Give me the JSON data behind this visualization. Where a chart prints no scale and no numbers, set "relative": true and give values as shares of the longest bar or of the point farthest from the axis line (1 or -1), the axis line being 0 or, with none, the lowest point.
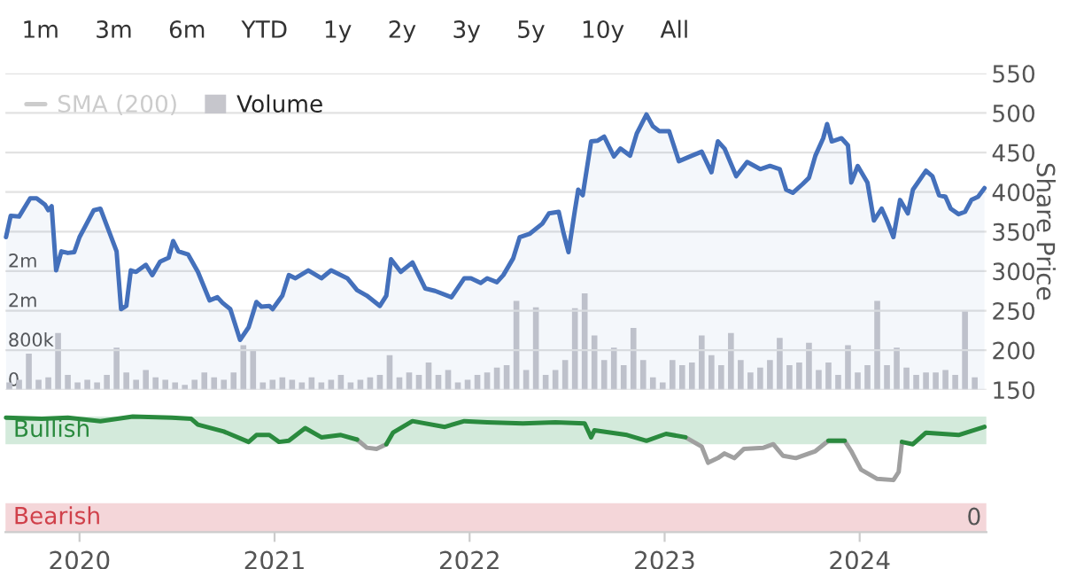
{
  "chart_data": [
    {
      "type": "area",
      "annotations": [
        "1m",
        "3m",
        "6m",
        "YTD",
        "1y",
        "2y",
        "3y",
        "5y",
        "10y",
        "All"
      ],
      "ylabel": "Share Price",
      "xlim": [
        2019.62,
        2024.65
      ],
      "ylim": [
        150,
        550
      ],
      "yticks": [
        150,
        200,
        250,
        300,
        350,
        400,
        450,
        500,
        550
      ],
      "y2lim": [
        0,
        6400000
      ],
      "y2ticks": [
        0,
        {
          "value": 800000,
          "label": "800k"
        },
        {
          "value": 1600000,
          "label": "2m"
        },
        {
          "value": 2400000,
          "label": "2m"
        }
      ],
      "grid": "y",
      "legend": "top left",
      "tick_labels": "y",
      "series": [
        {
          "type": "line",
          "name": "SMA (200)",
          "color": "#cccccc"
        },
        {
          "type": "bar",
          "name": "Volume",
          "color": "#c6c6cc",
          "axis": "y2",
          "x": [
            2019.64,
            2019.69,
            2019.74,
            2019.79,
            2019.84,
            2019.89,
            2019.94,
            2019.99,
            2020.04,
            2020.09,
            2020.14,
            2020.19,
            2020.24,
            2020.29,
            2020.34,
            2020.39,
            2020.44,
            2020.49,
            2020.54,
            2020.59,
            2020.64,
            2020.69,
            2020.74,
            2020.79,
            2020.84,
            2020.89,
            2020.94,
            2020.99,
            2021.04,
            2021.09,
            2021.14,
            2021.19,
            2021.24,
            2021.29,
            2021.34,
            2021.39,
            2021.44,
            2021.49,
            2021.54,
            2021.59,
            2021.64,
            2021.69,
            2021.74,
            2021.79,
            2021.84,
            2021.89,
            2021.94,
            2021.99,
            2022.04,
            2022.09,
            2022.14,
            2022.19,
            2022.24,
            2022.29,
            2022.34,
            2022.39,
            2022.44,
            2022.49,
            2022.54,
            2022.59,
            2022.64,
            2022.69,
            2022.74,
            2022.79,
            2022.84,
            2022.89,
            2022.94,
            2022.99,
            2023.04,
            2023.09,
            2023.14,
            2023.19,
            2023.24,
            2023.29,
            2023.34,
            2023.39,
            2023.44,
            2023.49,
            2023.54,
            2023.59,
            2023.64,
            2023.69,
            2023.74,
            2023.79,
            2023.84,
            2023.89,
            2023.94,
            2023.99,
            2024.04,
            2024.09,
            2024.14,
            2024.19,
            2024.24,
            2024.29,
            2024.34,
            2024.39,
            2024.44,
            2024.49,
            2024.54,
            2024.59
          ],
          "values": [
            150000,
            200000,
            730000,
            200000,
            250000,
            1150000,
            300000,
            150000,
            200000,
            150000,
            300000,
            850000,
            350000,
            200000,
            400000,
            250000,
            200000,
            150000,
            100000,
            200000,
            350000,
            250000,
            200000,
            350000,
            900000,
            800000,
            150000,
            200000,
            250000,
            200000,
            150000,
            250000,
            150000,
            200000,
            300000,
            150000,
            200000,
            250000,
            300000,
            700000,
            250000,
            350000,
            300000,
            550000,
            300000,
            400000,
            150000,
            200000,
            300000,
            350000,
            450000,
            500000,
            1800000,
            400000,
            1670000,
            300000,
            400000,
            600000,
            1650000,
            1950000,
            1100000,
            600000,
            850000,
            500000,
            1250000,
            600000,
            250000,
            150000,
            600000,
            500000,
            550000,
            1100000,
            700000,
            500000,
            1150000,
            600000,
            350000,
            450000,
            600000,
            1050000,
            500000,
            550000,
            950000,
            400000,
            550000,
            300000,
            900000,
            350000,
            500000,
            1800000,
            500000,
            850000,
            450000,
            300000,
            350000,
            350000,
            400000,
            300000,
            1600000,
            250000
          ]
        },
        {
          "type": "area",
          "color": "#4470bb",
          "x": [
            2019.623,
            2019.647,
            2019.69,
            2019.747,
            2019.78,
            2019.823,
            2019.84,
            2019.857,
            2019.88,
            2019.907,
            2019.94,
            2019.973,
            2020.0,
            2020.073,
            2020.107,
            2020.147,
            2020.19,
            2020.213,
            2020.24,
            2020.263,
            2020.29,
            2020.34,
            2020.373,
            2020.413,
            2020.457,
            2020.48,
            2020.507,
            2020.557,
            2020.607,
            2020.667,
            2020.707,
            2020.733,
            2020.773,
            2020.823,
            2020.867,
            2020.907,
            2020.933,
            2020.973,
            2020.99,
            2021.04,
            2021.073,
            2021.107,
            2021.173,
            2021.24,
            2021.29,
            2021.373,
            2021.423,
            2021.473,
            2021.54,
            2021.573,
            2021.597,
            2021.647,
            2021.707,
            2021.773,
            2021.823,
            2021.907,
            2021.973,
            2022.007,
            2022.057,
            2022.09,
            2022.14,
            2022.173,
            2022.223,
            2022.257,
            2022.307,
            2022.373,
            2022.407,
            2022.457,
            2022.48,
            2022.507,
            2022.54,
            2022.557,
            2022.58,
            2022.623,
            2022.657,
            2022.69,
            2022.74,
            2022.773,
            2022.823,
            2022.857,
            2022.907,
            2022.94,
            2022.973,
            2023.023,
            2023.073,
            2023.14,
            2023.19,
            2023.24,
            2023.273,
            2023.307,
            2023.367,
            2023.423,
            2023.49,
            2023.54,
            2023.59,
            2023.623,
            2023.657,
            2023.707,
            2023.74,
            2023.773,
            2023.813,
            2023.833,
            2023.857,
            2023.907,
            2023.94,
            2023.957,
            2023.99,
            2024.04,
            2024.073,
            2024.113,
            2024.14,
            2024.173,
            2024.207,
            2024.247,
            2024.273,
            2024.34,
            2024.373,
            2024.407,
            2024.44,
            2024.467,
            2024.507,
            2024.54,
            2024.573,
            2024.607,
            2024.64
          ],
          "values": [
            343,
            370,
            369,
            392,
            392,
            384,
            377,
            382,
            301,
            325,
            323,
            324,
            343,
            377,
            379,
            353,
            325,
            252,
            256,
            301,
            299,
            308,
            295,
            312,
            317,
            338,
            325,
            321,
            299,
            263,
            267,
            260,
            252,
            213,
            229,
            261,
            255,
            256,
            252,
            269,
            295,
            291,
            301,
            291,
            301,
            291,
            276,
            269,
            256,
            269,
            315,
            299,
            311,
            278,
            275,
            267,
            291,
            291,
            285,
            291,
            286,
            295,
            316,
            343,
            347,
            360,
            373,
            375,
            350,
            324,
            377,
            403,
            396,
            464,
            465,
            470,
            445,
            455,
            446,
            474,
            498,
            483,
            477,
            477,
            439,
            446,
            451,
            425,
            464,
            455,
            420,
            438,
            429,
            433,
            429,
            403,
            399,
            410,
            418,
            446,
            468,
            486,
            464,
            468,
            459,
            412,
            433,
            412,
            364,
            379,
            364,
            343,
            390,
            373,
            403,
            427,
            420,
            396,
            394,
            379,
            372,
            375,
            390,
            394,
            405
          ]
        }
      ]
    },
    {
      "type": "line",
      "relative": true,
      "xlim": [
        2019.62,
        2024.65
      ],
      "xticks": [
        2020,
        2021,
        2022,
        2023,
        2024
      ],
      "tick_labels": "x",
      "annotations": [
        "0"
      ],
      "bands": [
        {
          "axis": "y",
          "from": 0.76,
          "to": 1,
          "label": "Bullish",
          "color": "#d3eadb"
        },
        {
          "axis": "y",
          "from": 0,
          "to": 0.25,
          "label": "Bearish",
          "color": "#f4d6d9"
        }
      ],
      "x": [
        2019.623,
        2019.807,
        2019.94,
        2020.107,
        2020.273,
        2020.473,
        2020.573,
        2020.607,
        2020.74,
        2020.867,
        2020.907,
        2020.973,
        2021.023,
        2021.073,
        2021.157,
        2021.24,
        2021.34,
        2021.423,
        2021.473,
        2021.523,
        2021.573,
        2021.607,
        2021.707,
        2021.873,
        2021.973,
        2022.09,
        2022.273,
        2022.44,
        2022.59,
        2022.623,
        2022.64,
        2022.807,
        2022.907,
        2023.007,
        2023.107,
        2023.19,
        2023.223,
        2023.273,
        2023.307,
        2023.357,
        2023.407,
        2023.507,
        2023.557,
        2023.607,
        2023.673,
        2023.773,
        2023.84,
        2023.923,
        2023.957,
        2024.007,
        2024.09,
        2024.173,
        2024.2,
        2024.217,
        2024.273,
        2024.34,
        2024.507,
        2024.64
      ],
      "series": [
        {
          "color": "#a0a0a0",
          "values": [
            null,
            null,
            null,
            null,
            null,
            null,
            null,
            null,
            null,
            null,
            null,
            null,
            null,
            null,
            null,
            null,
            null,
            0.8,
            0.73,
            0.72,
            0.76,
            null,
            null,
            null,
            null,
            null,
            null,
            null,
            null,
            null,
            null,
            null,
            null,
            null,
            0.82,
            0.74,
            0.6,
            0.64,
            0.68,
            0.64,
            0.72,
            0.73,
            0.76,
            0.66,
            0.64,
            0.7,
            0.79,
            0.79,
            0.7,
            0.54,
            0.46,
            0.45,
            0.52,
            0.78,
            null,
            null,
            null,
            null
          ]
        },
        {
          "color": "#2a8a3e",
          "values": [
            0.99,
            0.98,
            0.99,
            0.96,
            1,
            0.99,
            0.98,
            0.93,
            0.87,
            0.78,
            0.84,
            0.84,
            0.78,
            0.79,
            0.9,
            0.82,
            0.84,
            0.8,
            null,
            null,
            0.76,
            0.86,
            0.96,
            0.91,
            0.96,
            0.95,
            0.94,
            0.95,
            0.94,
            0.82,
            0.88,
            0.84,
            0.79,
            0.85,
            0.82,
            null,
            null,
            null,
            null,
            null,
            null,
            null,
            null,
            null,
            null,
            null,
            0.79,
            0.79,
            null,
            null,
            null,
            null,
            null,
            0.78,
            0.76,
            0.86,
            0.84,
            0.91
          ]
        }
      ]
    }
  ]
}
